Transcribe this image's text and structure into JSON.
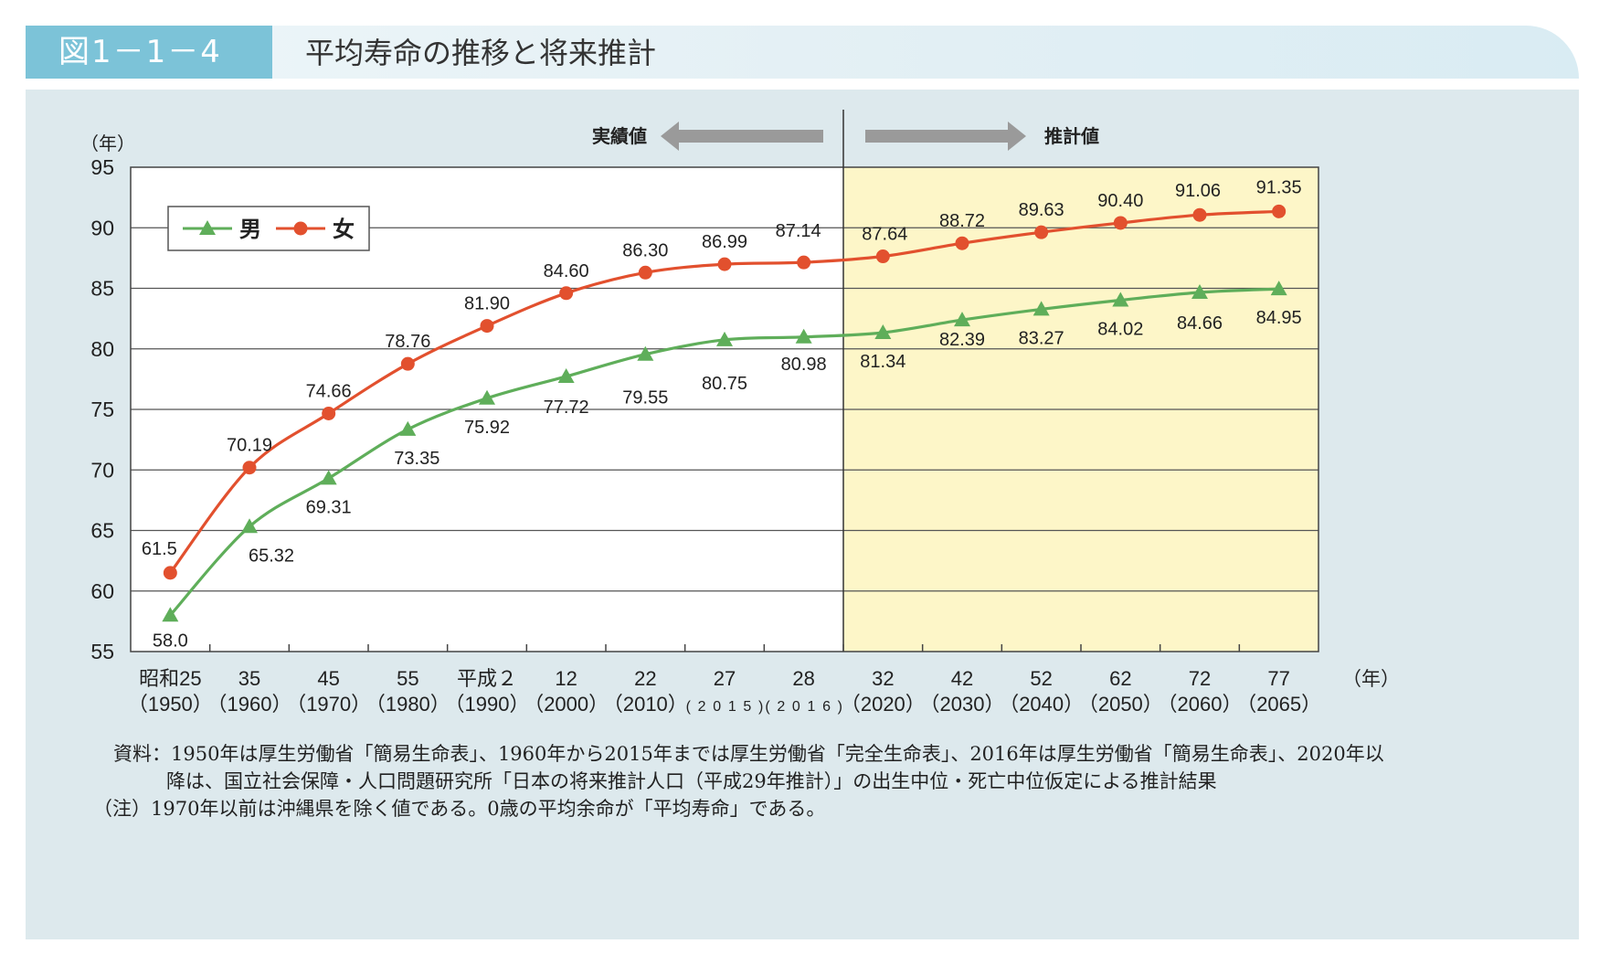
{
  "figure": {
    "number": "図1－1－4",
    "title": "平均寿命の推移と将来推計"
  },
  "annotations": {
    "actual": "実績値",
    "projected": "推計値"
  },
  "notes": {
    "source_line1": "資料：1950年は厚生労働省「簡易生命表」、1960年から2015年までは厚生労働省「完全生命表」、2016年は厚生労働省「簡易生命表」、2020年以",
    "source_line2": "降は、国立社会保障・人口問題研究所「日本の将来推計人口（平成29年推計）」の出生中位・死亡中位仮定による推計結果",
    "note": "（注）1970年以前は沖縄県を除く値である。0歳の平均余命が「平均寿命」である。"
  },
  "colors": {
    "male": "#5fae5a",
    "female": "#e2502e",
    "projection_bg": "#fdf6c8",
    "panel_bg": "#dde9ed",
    "header_tab": "#7cc3d8",
    "arrow": "#9a9a9a"
  },
  "chart_data": {
    "type": "line",
    "ylabel": "（年）",
    "xunit": "（年）",
    "ylim": [
      55,
      95
    ],
    "yticks": [
      "55",
      "60",
      "65",
      "70",
      "75",
      "80",
      "85",
      "90",
      "95"
    ],
    "grid": true,
    "legend_position": "top-left",
    "projection_start_index": 8,
    "categories": [
      {
        "era": "昭和25",
        "year": "（1950）"
      },
      {
        "era": "35",
        "year": "（1960）"
      },
      {
        "era": "45",
        "year": "（1970）"
      },
      {
        "era": "55",
        "year": "（1980）"
      },
      {
        "era": "平成２",
        "year": "（1990）"
      },
      {
        "era": "12",
        "year": "（2000）"
      },
      {
        "era": "22",
        "year": "（2010）"
      },
      {
        "era": "27",
        "year": "(2015)"
      },
      {
        "era": "28",
        "year": "(2016)"
      },
      {
        "era": "32",
        "year": "（2020）"
      },
      {
        "era": "42",
        "year": "（2030）"
      },
      {
        "era": "52",
        "year": "（2040）"
      },
      {
        "era": "62",
        "year": "（2050）"
      },
      {
        "era": "72",
        "year": "（2060）"
      },
      {
        "era": "77",
        "year": "（2065）"
      }
    ],
    "x": [
      1950,
      1960,
      1970,
      1980,
      1990,
      2000,
      2010,
      2015,
      2016,
      2020,
      2030,
      2040,
      2050,
      2060,
      2065
    ],
    "series": [
      {
        "name": "男",
        "marker": "triangle",
        "values": [
          58.0,
          65.32,
          69.31,
          73.35,
          75.92,
          77.72,
          79.55,
          80.75,
          80.98,
          81.34,
          82.39,
          83.27,
          84.02,
          84.66,
          84.95
        ],
        "labels": [
          "58.0",
          "65.32",
          "69.31",
          "73.35",
          "75.92",
          "77.72",
          "79.55",
          "80.75",
          "80.98",
          "81.34",
          "82.39",
          "83.27",
          "84.02",
          "84.66",
          "84.95"
        ]
      },
      {
        "name": "女",
        "marker": "circle",
        "values": [
          61.5,
          70.19,
          74.66,
          78.76,
          81.9,
          84.6,
          86.3,
          86.99,
          87.14,
          87.64,
          88.72,
          89.63,
          90.4,
          91.06,
          91.35
        ],
        "labels": [
          "61.5",
          "70.19",
          "74.66",
          "78.76",
          "81.90",
          "84.60",
          "86.30",
          "86.99",
          "87.14",
          "87.64",
          "88.72",
          "89.63",
          "90.40",
          "91.06",
          "91.35"
        ]
      }
    ]
  }
}
